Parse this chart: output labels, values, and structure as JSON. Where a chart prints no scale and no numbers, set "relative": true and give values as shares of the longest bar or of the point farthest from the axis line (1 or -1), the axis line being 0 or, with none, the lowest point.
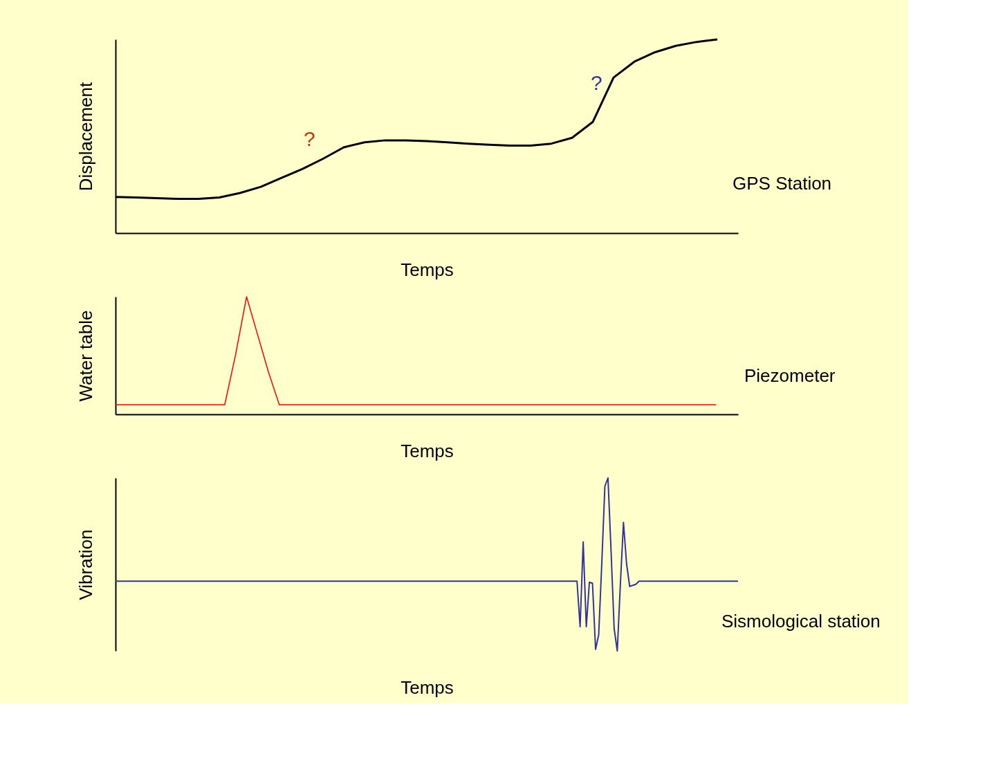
{
  "chart_data": [
    {
      "type": "line",
      "relative": true,
      "ylabel": "Displacement",
      "xlabel": "Temps",
      "annotations": [
        "?",
        "?",
        "GPS Station"
      ],
      "grid": false,
      "categories": [
        null,
        null,
        null,
        null,
        null,
        null,
        null,
        null,
        null,
        null,
        null,
        null,
        null,
        null,
        null,
        null,
        null,
        null,
        null,
        null,
        null,
        null,
        null,
        null,
        null,
        null,
        null,
        null,
        null,
        null,
        null
      ],
      "series": [
        {
          "color": "#000000",
          "values": [
            0.187,
            0.184,
            0.18,
            0.177,
            0.177,
            0.184,
            0.207,
            0.239,
            0.285,
            0.331,
            0.384,
            0.443,
            0.469,
            0.479,
            0.479,
            0.475,
            0.469,
            0.462,
            0.456,
            0.452,
            0.452,
            0.462,
            0.492,
            0.574,
            0.803,
            0.885,
            0.934,
            0.967,
            0.987,
            1.0,
            null
          ]
        }
      ]
    },
    {
      "type": "line",
      "relative": true,
      "ylabel": "Water table",
      "xlabel": "Temps",
      "annotations": [
        "Piezometer"
      ],
      "grid": false,
      "categories": [
        null,
        null,
        null,
        null,
        null,
        null,
        null,
        null,
        null,
        null,
        null,
        null,
        null,
        null,
        null,
        null,
        null,
        null,
        null,
        null,
        null,
        null,
        null,
        null,
        null,
        null,
        null,
        null,
        null,
        null,
        null,
        null,
        null,
        null,
        null,
        null,
        null,
        null,
        null,
        null,
        null,
        null,
        null,
        null,
        null,
        null,
        null,
        null,
        null,
        null,
        null,
        null,
        null,
        null,
        null,
        null,
        null,
        null
      ],
      "series": [
        {
          "color": "#ff0000",
          "values": [
            0.081,
            0.081,
            0.081,
            0.081,
            0.081,
            0.081,
            0.081,
            0.081,
            0.081,
            0.081,
            0.081,
            0.51,
            1.0,
            0.68,
            0.36,
            0.081,
            0.081,
            0.081,
            0.081,
            0.081,
            0.081,
            0.081,
            0.081,
            0.081,
            0.081,
            0.081,
            0.081,
            0.081,
            0.081,
            0.081,
            0.081,
            0.081,
            0.081,
            0.081,
            0.081,
            0.081,
            0.081,
            0.081,
            0.081,
            0.081,
            0.081,
            0.081,
            0.081,
            0.081,
            0.081,
            0.081,
            0.081,
            0.081,
            0.081,
            0.081,
            0.081,
            0.081,
            0.081,
            0.081,
            0.081,
            0.081,
            null,
            null
          ]
        }
      ]
    },
    {
      "type": "line",
      "relative": true,
      "ylabel": "Vibration",
      "xlabel": "Temps",
      "annotations": [
        "Sismological station"
      ],
      "grid": false,
      "categories": [
        null,
        null,
        null,
        null,
        null,
        null,
        null,
        null,
        null,
        null,
        null,
        null,
        null,
        null,
        null,
        null,
        null,
        null,
        null,
        null,
        null,
        null,
        null,
        null,
        null,
        null,
        null,
        null,
        null,
        null,
        null,
        null,
        null,
        null,
        null,
        null,
        null,
        null,
        null,
        null,
        null,
        null,
        null,
        null,
        null,
        null,
        null,
        null,
        null,
        null,
        null,
        null,
        null,
        null,
        null,
        null,
        null,
        null,
        null,
        null,
        null,
        null,
        null,
        null,
        null,
        null,
        null,
        null,
        null,
        null,
        null,
        null,
        null,
        null,
        null,
        null,
        null,
        null,
        null,
        null,
        null,
        null,
        null,
        null,
        null,
        null,
        null,
        null,
        null,
        null,
        null,
        null,
        null,
        null,
        null,
        null,
        null,
        null,
        null,
        null,
        null,
        null,
        null,
        null,
        null,
        null,
        null,
        null,
        null,
        null,
        null,
        null,
        null,
        null,
        null,
        null,
        null,
        null,
        null,
        null,
        null,
        null,
        null,
        null,
        null,
        null,
        null,
        null,
        null,
        null,
        null,
        null,
        null,
        null,
        null,
        null,
        null,
        null,
        null,
        null,
        null,
        null,
        null,
        null,
        null,
        null,
        null,
        null,
        null,
        null,
        null,
        null,
        null,
        null,
        null,
        null,
        null,
        null,
        null,
        null,
        null,
        null,
        null,
        null,
        null,
        null,
        null,
        null,
        null,
        null,
        null,
        null,
        null,
        null,
        null,
        null,
        null,
        null,
        null,
        null,
        null,
        null,
        null,
        null,
        null,
        null,
        null,
        null,
        null,
        null,
        null,
        null,
        null,
        null,
        null,
        null,
        null,
        null,
        null,
        null,
        null,
        null
      ],
      "series": [
        {
          "color": "#333399",
          "values": [
            0.403,
            0.403,
            0.403,
            0.403,
            0.403,
            0.403,
            0.403,
            0.403,
            0.403,
            0.403,
            0.403,
            0.403,
            0.403,
            0.403,
            0.403,
            0.403,
            0.403,
            0.403,
            0.403,
            0.403,
            0.403,
            0.403,
            0.403,
            0.403,
            0.403,
            0.403,
            0.403,
            0.403,
            0.403,
            0.403,
            0.403,
            0.403,
            0.403,
            0.403,
            0.403,
            0.403,
            0.403,
            0.403,
            0.403,
            0.403,
            0.403,
            0.403,
            0.403,
            0.403,
            0.403,
            0.403,
            0.403,
            0.403,
            0.403,
            0.403,
            0.403,
            0.403,
            0.403,
            0.403,
            0.403,
            0.403,
            0.403,
            0.403,
            0.403,
            0.403,
            0.403,
            0.403,
            0.403,
            0.403,
            0.403,
            0.403,
            0.403,
            0.403,
            0.403,
            0.403,
            0.403,
            0.403,
            0.403,
            0.403,
            0.403,
            0.403,
            0.403,
            0.403,
            0.403,
            0.403,
            0.403,
            0.403,
            0.403,
            0.403,
            0.403,
            0.403,
            0.403,
            0.403,
            0.403,
            0.403,
            0.403,
            0.403,
            0.403,
            0.403,
            0.403,
            0.403,
            0.403,
            0.403,
            0.403,
            0.403,
            0.403,
            0.403,
            0.403,
            0.403,
            0.403,
            0.403,
            0.403,
            0.403,
            0.403,
            0.403,
            0.403,
            0.403,
            0.403,
            0.403,
            0.403,
            0.403,
            0.403,
            0.403,
            0.403,
            0.403,
            0.403,
            0.403,
            0.403,
            0.403,
            0.403,
            0.403,
            0.403,
            0.403,
            0.403,
            0.403,
            0.403,
            0.403,
            0.403,
            0.403,
            0.403,
            0.403,
            0.403,
            0.403,
            0.403,
            0.403,
            0.403,
            0.403,
            0.403,
            0.403,
            0.403,
            0.403,
            0.403,
            0.403,
            0.403,
            0.403,
            0.14,
            0.63,
            0.14,
            0.397,
            0.391,
            0.009,
            0.093,
            0.505,
            0.952,
            1.0,
            0.576,
            0.128,
            0.0,
            0.385,
            0.743,
            0.505,
            0.373,
            0.379,
            0.385,
            0.403,
            0.403,
            0.403,
            0.403,
            0.403,
            0.403,
            0.403,
            0.403,
            0.403,
            0.403,
            0.403,
            0.403,
            0.403,
            0.403,
            0.403,
            0.403,
            0.403,
            0.403,
            0.403,
            0.403,
            0.403,
            0.403,
            0.403,
            0.403,
            0.403,
            0.403,
            0.403,
            0.403,
            0.403,
            0.403,
            0.403,
            0.403,
            0.403
          ]
        }
      ]
    }
  ]
}
